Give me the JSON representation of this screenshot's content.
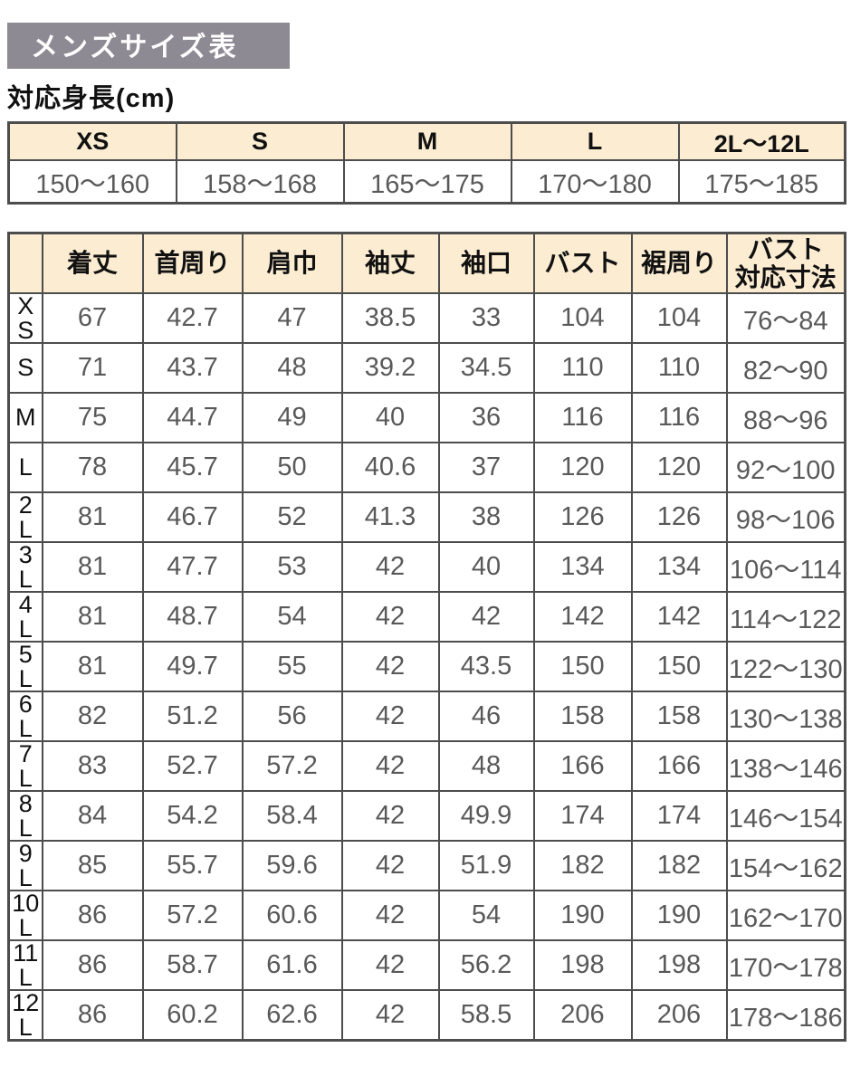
{
  "page": {
    "title": "メンズサイズ表",
    "subtitle": "対応身長(cm)"
  },
  "colors": {
    "title_bar_bg": "#8e8a93",
    "title_text": "#ffffff",
    "header_cell_bg": "#fbecd2",
    "border": "#4d4d4d",
    "value_text": "#595959",
    "label_text": "#111111"
  },
  "height_table": {
    "columns": [
      "XS",
      "S",
      "M",
      "L",
      "2L～12L"
    ],
    "values": [
      "150～160",
      "158～168",
      "165～175",
      "170～180",
      "175～185"
    ]
  },
  "size_table": {
    "corner_label": "",
    "columns": [
      "着丈",
      "首周り",
      "肩巾",
      "袖丈",
      "袖口",
      "バスト",
      "裾周り",
      "バスト\n対応寸法"
    ],
    "rows": [
      {
        "label": "X\nS",
        "values": [
          "67",
          "42.7",
          "47",
          "38.5",
          "33",
          "104",
          "104",
          "76～84"
        ]
      },
      {
        "label": "S",
        "values": [
          "71",
          "43.7",
          "48",
          "39.2",
          "34.5",
          "110",
          "110",
          "82～90"
        ]
      },
      {
        "label": "M",
        "values": [
          "75",
          "44.7",
          "49",
          "40",
          "36",
          "116",
          "116",
          "88～96"
        ]
      },
      {
        "label": "L",
        "values": [
          "78",
          "45.7",
          "50",
          "40.6",
          "37",
          "120",
          "120",
          "92～100"
        ]
      },
      {
        "label": "2\nL",
        "values": [
          "81",
          "46.7",
          "52",
          "41.3",
          "38",
          "126",
          "126",
          "98～106"
        ]
      },
      {
        "label": "3\nL",
        "values": [
          "81",
          "47.7",
          "53",
          "42",
          "40",
          "134",
          "134",
          "106～114"
        ]
      },
      {
        "label": "4\nL",
        "values": [
          "81",
          "48.7",
          "54",
          "42",
          "42",
          "142",
          "142",
          "114～122"
        ]
      },
      {
        "label": "5\nL",
        "values": [
          "81",
          "49.7",
          "55",
          "42",
          "43.5",
          "150",
          "150",
          "122～130"
        ]
      },
      {
        "label": "6\nL",
        "values": [
          "82",
          "51.2",
          "56",
          "42",
          "46",
          "158",
          "158",
          "130～138"
        ]
      },
      {
        "label": "7\nL",
        "values": [
          "83",
          "52.7",
          "57.2",
          "42",
          "48",
          "166",
          "166",
          "138～146"
        ]
      },
      {
        "label": "8\nL",
        "values": [
          "84",
          "54.2",
          "58.4",
          "42",
          "49.9",
          "174",
          "174",
          "146～154"
        ]
      },
      {
        "label": "9\nL",
        "values": [
          "85",
          "55.7",
          "59.6",
          "42",
          "51.9",
          "182",
          "182",
          "154～162"
        ]
      },
      {
        "label": "10\nL",
        "values": [
          "86",
          "57.2",
          "60.6",
          "42",
          "54",
          "190",
          "190",
          "162～170"
        ]
      },
      {
        "label": "11\nL",
        "values": [
          "86",
          "58.7",
          "61.6",
          "42",
          "56.2",
          "198",
          "198",
          "170～178"
        ]
      },
      {
        "label": "12\nL",
        "values": [
          "86",
          "60.2",
          "62.6",
          "42",
          "58.5",
          "206",
          "206",
          "178～186"
        ]
      }
    ]
  }
}
